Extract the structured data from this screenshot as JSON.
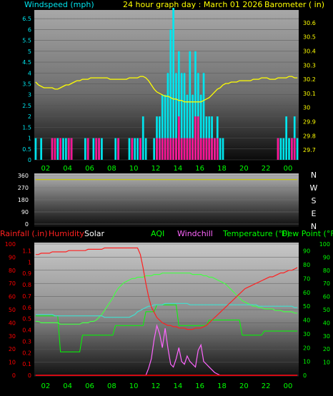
{
  "header": {
    "left_label": "Windspeed (mph)",
    "title": "24 hour graph day : March 01 2026",
    "right_label": "Barometer ( in)"
  },
  "panel3_labels": {
    "rainfall": "Rainfall (.in)",
    "humidity": "Humidity",
    "solar": "Solar",
    "aqi": "AQI",
    "windchill": "Windchill",
    "temperature": "Temperature (°F)",
    "dewpoint": "Dew Point (°F)"
  },
  "colors": {
    "background": "#000000",
    "windspeed": "#ff1493",
    "gust": "#00e5ee",
    "barometer": "#ffff00",
    "direction": "#cccc00",
    "temperature": "#ff2020",
    "humidity": "#ff2020",
    "dewpoint": "#44ff44",
    "windchill": "#ff66ff",
    "aqi": "#00ff00",
    "indoor": "#40e0d0",
    "solar": "#ffffff",
    "rain": "#ff0000",
    "hour_ticks": "#00ff00",
    "wind_ticks": "#00e5ee",
    "baro_ticks": "#ffff00",
    "rain_ticks": "#ff0000",
    "temp_ticks": "#00ff00"
  },
  "chart_data": [
    {
      "type": "bar",
      "name": "wind",
      "x_ticks": [
        "02",
        "04",
        "06",
        "08",
        "10",
        "12",
        "14",
        "16",
        "18",
        "20",
        "22",
        "00"
      ],
      "y_left_ticks": [
        "0",
        "0.5",
        "1",
        "1.5",
        "2",
        "2.5",
        "3",
        "3.5",
        "4",
        "4.5",
        "5",
        "5.5",
        "6",
        "6.5"
      ],
      "y_left_range": [
        0,
        6.9
      ],
      "y_right_ticks": [
        "29.7",
        "29.8",
        "29.9",
        "30",
        "30.1",
        "30.2",
        "30.3",
        "30.4",
        "30.5",
        "30.6"
      ],
      "y_right_range": [
        29.63,
        30.69
      ],
      "windspeed_mph": [
        0,
        0,
        0,
        0,
        0,
        0,
        1,
        1,
        0,
        1,
        0,
        0,
        1,
        1,
        0,
        0,
        0,
        0,
        0,
        1,
        0,
        0,
        1,
        1,
        0,
        0,
        0,
        0,
        0,
        0,
        1,
        0,
        0,
        0,
        0,
        1,
        0,
        0,
        1,
        0,
        0,
        0,
        0,
        0,
        1,
        1,
        1,
        1,
        1,
        1,
        1,
        1,
        2,
        1,
        1,
        1,
        1,
        1,
        2,
        2,
        1,
        1,
        1,
        1,
        1,
        1,
        1,
        0,
        0,
        0,
        0,
        0,
        0,
        0,
        0,
        0,
        0,
        0,
        0,
        0,
        0,
        0,
        0,
        0,
        0,
        0,
        0,
        0,
        1,
        0,
        0,
        0,
        0,
        1,
        1,
        0
      ],
      "gust_mph": [
        1,
        0,
        1,
        0,
        0,
        0,
        1,
        0,
        1,
        0,
        1,
        1,
        1,
        1,
        0,
        0,
        0,
        0,
        1,
        1,
        0,
        1,
        1,
        1,
        1,
        0,
        0,
        0,
        0,
        1,
        1,
        0,
        0,
        0,
        1,
        1,
        1,
        1,
        1,
        2,
        1,
        0,
        0,
        1,
        2,
        2,
        3,
        3,
        4,
        6,
        7,
        4,
        5,
        4,
        4,
        3,
        5,
        3,
        5,
        4,
        3,
        4,
        2,
        2,
        2,
        1,
        2,
        1,
        1,
        0,
        0,
        0,
        0,
        0,
        0,
        0,
        0,
        0,
        0,
        0,
        0,
        0,
        0,
        0,
        0,
        0,
        0,
        0,
        1,
        1,
        1,
        2,
        1,
        1,
        2,
        1
      ],
      "barometer_in": [
        30.18,
        30.16,
        30.15,
        30.14,
        30.14,
        30.14,
        30.14,
        30.13,
        30.13,
        30.14,
        30.15,
        30.16,
        30.16,
        30.17,
        30.18,
        30.19,
        30.19,
        30.2,
        30.2,
        30.2,
        30.21,
        30.21,
        30.21,
        30.21,
        30.21,
        30.21,
        30.21,
        30.2,
        30.2,
        30.2,
        30.2,
        30.2,
        30.2,
        30.2,
        30.21,
        30.21,
        30.21,
        30.21,
        30.22,
        30.22,
        30.21,
        30.19,
        30.16,
        30.13,
        30.11,
        30.1,
        30.09,
        30.08,
        30.08,
        30.07,
        30.06,
        30.06,
        30.05,
        30.05,
        30.04,
        30.04,
        30.04,
        30.04,
        30.04,
        30.04,
        30.04,
        30.05,
        30.06,
        30.07,
        30.09,
        30.11,
        30.13,
        30.14,
        30.16,
        30.17,
        30.17,
        30.18,
        30.18,
        30.18,
        30.19,
        30.19,
        30.19,
        30.19,
        30.19,
        30.2,
        30.2,
        30.2,
        30.21,
        30.21,
        30.21,
        30.2,
        30.2,
        30.2,
        30.21,
        30.21,
        30.21,
        30.21,
        30.22,
        30.22,
        30.21,
        30.21
      ]
    },
    {
      "type": "line",
      "name": "wind direction",
      "y_ticks": [
        "0",
        "90",
        "180",
        "270",
        "360"
      ],
      "y_range": [
        0,
        360
      ],
      "compass_labels": [
        "N",
        "W",
        "S",
        "E",
        "N"
      ],
      "direction_deg": [
        330,
        330,
        330,
        330,
        330,
        330,
        330,
        330,
        330,
        330,
        330,
        330,
        330,
        330,
        330,
        330,
        330,
        330,
        330,
        330,
        330,
        330,
        330,
        330,
        330,
        330,
        330,
        330,
        330,
        330,
        330,
        330,
        330,
        330,
        330,
        330,
        330,
        330,
        330,
        330,
        330,
        330,
        330,
        330,
        330,
        330,
        330,
        330,
        330,
        330,
        330,
        330,
        330,
        330,
        330,
        330,
        330,
        330,
        330,
        330,
        330,
        330,
        330,
        330,
        330,
        330,
        330,
        330,
        330,
        330,
        330,
        330,
        330,
        330,
        330,
        330,
        330,
        330,
        330,
        330,
        330,
        330,
        330,
        330,
        330,
        330,
        330,
        330,
        330,
        330,
        330,
        330,
        330,
        330,
        330,
        330
      ]
    },
    {
      "type": "line",
      "name": "temperature humidity",
      "y_left_ticks": [
        "0",
        "0.1",
        "0.2",
        "0.3",
        "0.4",
        "0.5",
        "0.6",
        "0.7",
        "0.8",
        "0.9",
        "1",
        "1.1"
      ],
      "y_left_range": [
        0,
        1.16
      ],
      "y_left2_ticks": [
        "0",
        "10",
        "20",
        "30",
        "40",
        "50",
        "60",
        "70",
        "80",
        "90",
        "100"
      ],
      "y_left2_range": [
        0,
        100
      ],
      "y_right_ticks": [
        "0",
        "10",
        "20",
        "30",
        "40",
        "50",
        "60",
        "70",
        "80",
        "90"
      ],
      "y_right_range": [
        0,
        95
      ],
      "y_right2_ticks": [
        "10",
        "20",
        "30",
        "40",
        "50",
        "60",
        "70",
        "80",
        "90",
        "100"
      ],
      "humidity_pct": [
        92,
        92,
        93,
        93,
        93,
        93,
        94,
        94,
        94,
        94,
        94,
        94,
        95,
        95,
        95,
        95,
        95,
        95,
        95,
        96,
        96,
        96,
        96,
        96,
        96,
        97,
        97,
        97,
        97,
        97,
        97,
        97,
        97,
        97,
        97,
        97,
        97,
        97,
        92,
        82,
        70,
        60,
        52,
        48,
        44,
        42,
        40,
        39,
        38,
        38,
        37,
        37,
        36,
        36,
        36,
        35,
        35,
        35,
        36,
        36,
        36,
        37,
        38,
        40,
        42,
        44,
        46,
        48,
        50,
        52,
        54,
        56,
        58,
        60,
        62,
        64,
        66,
        67,
        68,
        69,
        70,
        71,
        72,
        73,
        74,
        75,
        75,
        76,
        77,
        78,
        78,
        79,
        80,
        80,
        81,
        82
      ],
      "dewpoint_f": [
        39,
        39,
        38,
        38,
        38,
        38,
        38,
        38,
        38,
        37,
        37,
        37,
        37,
        37,
        37,
        37,
        37,
        38,
        38,
        38,
        39,
        39,
        40,
        42,
        44,
        47,
        50,
        53,
        56,
        60,
        63,
        65,
        67,
        68,
        69,
        70,
        70,
        71,
        71,
        71,
        72,
        72,
        72,
        73,
        73,
        73,
        74,
        74,
        74,
        74,
        74,
        74,
        74,
        74,
        74,
        74,
        74,
        73,
        73,
        73,
        73,
        72,
        72,
        71,
        71,
        70,
        69,
        68,
        67,
        66,
        64,
        62,
        60,
        58,
        56,
        54,
        53,
        52,
        51,
        50,
        50,
        49,
        49,
        48,
        48,
        48,
        48,
        47,
        47,
        47,
        46,
        46,
        46,
        46,
        45,
        45
      ],
      "aqi": [
        43,
        43,
        43,
        43,
        43,
        43,
        43,
        43,
        43,
        17,
        17,
        17,
        17,
        17,
        17,
        17,
        17,
        29,
        29,
        29,
        29,
        29,
        29,
        29,
        29,
        29,
        29,
        29,
        29,
        36,
        36,
        36,
        36,
        36,
        36,
        36,
        36,
        36,
        36,
        36,
        46,
        46,
        46,
        46,
        51,
        51,
        51,
        51,
        51,
        51,
        51,
        51,
        36,
        36,
        36,
        36,
        36,
        36,
        36,
        36,
        36,
        36,
        36,
        40,
        40,
        40,
        40,
        40,
        40,
        40,
        40,
        40,
        40,
        40,
        40,
        29,
        29,
        29,
        29,
        29,
        29,
        29,
        29,
        32,
        32,
        32,
        32,
        32,
        32,
        32,
        32,
        32,
        32,
        32,
        32,
        32
      ],
      "indoor_f": [
        44,
        44,
        44,
        44,
        44,
        44,
        44,
        43,
        43,
        43,
        43,
        43,
        43,
        43,
        43,
        43,
        43,
        43,
        43,
        43,
        43,
        43,
        43,
        43,
        43,
        42,
        42,
        42,
        42,
        42,
        42,
        42,
        42,
        42,
        42,
        43,
        44,
        46,
        47,
        48,
        49,
        50,
        50,
        51,
        51,
        51,
        51,
        52,
        52,
        52,
        52,
        52,
        52,
        52,
        52,
        52,
        51,
        51,
        51,
        51,
        51,
        51,
        51,
        51,
        51,
        51,
        51,
        51,
        51,
        51,
        51,
        51,
        51,
        51,
        51,
        51,
        51,
        51,
        51,
        51,
        51,
        50,
        50,
        50,
        50,
        50,
        50,
        50,
        50,
        50,
        50,
        50,
        50,
        50,
        49,
        49
      ],
      "windchill_f": [
        0,
        0,
        0,
        0,
        0,
        0,
        0,
        0,
        0,
        0,
        0,
        0,
        0,
        0,
        0,
        0,
        0,
        0,
        0,
        0,
        0,
        0,
        0,
        0,
        0,
        0,
        0,
        0,
        0,
        0,
        0,
        0,
        0,
        0,
        0,
        0,
        0,
        0,
        0,
        0,
        0,
        5,
        12,
        26,
        36,
        30,
        20,
        34,
        20,
        8,
        6,
        12,
        20,
        10,
        8,
        14,
        10,
        8,
        6,
        18,
        22,
        10,
        8,
        6,
        4,
        2,
        1,
        0,
        0,
        0,
        0,
        0,
        0,
        0,
        0,
        0,
        0,
        0,
        0,
        0,
        0,
        0,
        0,
        0,
        0,
        0,
        0,
        0,
        0,
        0,
        0,
        0,
        0,
        0,
        0,
        0
      ],
      "solar_wm2": [
        0,
        0,
        0,
        0,
        0,
        0,
        0,
        0,
        0,
        0,
        0,
        0,
        0,
        0,
        0,
        0,
        0,
        0,
        0,
        0,
        0,
        0,
        0,
        0,
        0,
        0,
        0,
        0,
        0,
        0,
        0,
        0,
        0,
        0,
        0,
        0,
        0,
        0,
        0,
        0,
        0,
        0,
        0,
        0,
        0,
        0,
        0,
        0,
        0,
        0,
        0,
        0,
        0,
        0,
        0,
        0,
        0,
        0,
        0,
        0,
        0,
        0,
        0,
        0,
        0,
        0,
        0,
        0,
        0,
        0,
        0,
        0,
        0,
        0,
        0,
        0,
        0,
        0,
        0,
        0,
        0,
        0,
        0,
        0,
        0,
        0,
        0,
        0,
        0,
        0,
        0,
        0,
        0,
        0,
        0,
        0
      ],
      "rain_in": [
        0,
        0,
        0,
        0,
        0,
        0,
        0,
        0,
        0,
        0,
        0,
        0,
        0,
        0,
        0,
        0,
        0,
        0,
        0,
        0,
        0,
        0,
        0,
        0,
        0,
        0,
        0,
        0,
        0,
        0,
        0,
        0,
        0,
        0,
        0,
        0,
        0,
        0,
        0,
        0,
        0,
        0,
        0,
        0,
        0,
        0,
        0,
        0,
        0,
        0,
        0,
        0,
        0,
        0,
        0,
        0,
        0,
        0,
        0,
        0,
        0,
        0,
        0,
        0,
        0,
        0,
        0,
        0,
        0,
        0,
        0,
        0,
        0,
        0,
        0,
        0,
        0,
        0,
        0,
        0,
        0,
        0,
        0,
        0,
        0,
        0,
        0,
        0,
        0,
        0,
        0,
        0,
        0,
        0,
        0,
        0
      ]
    }
  ]
}
